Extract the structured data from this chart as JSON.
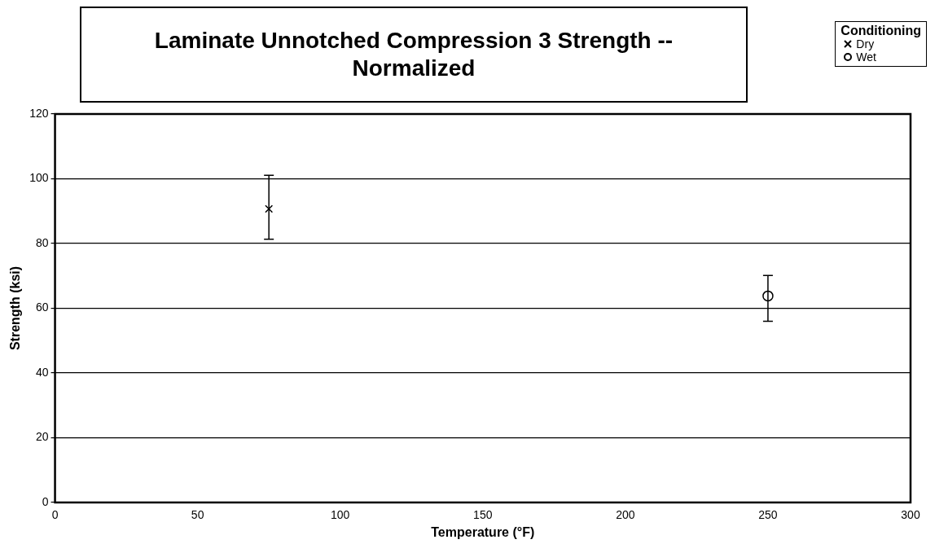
{
  "chart_data": {
    "type": "scatter",
    "title": "Laminate Unnotched Compression 3 Strength  -- Normalized",
    "xlabel": "Temperature (°F)",
    "ylabel": "Strength (ksi)",
    "legend_title": "Conditioning",
    "legend": "top right",
    "series": [
      {
        "name": "Dry",
        "color": "#000000",
        "marker": "cross",
        "x": [
          75
        ],
        "values": [
          90.7
        ],
        "errors": [
          [
            81.3,
            101.1
          ]
        ]
      },
      {
        "name": "Wet",
        "color": "#000000",
        "marker": "circle",
        "x": [
          250
        ],
        "values": [
          63.8
        ],
        "errors": [
          [
            56.0,
            70.1
          ]
        ]
      }
    ],
    "xlim": [
      0,
      300
    ],
    "xticks": [
      0,
      50,
      100,
      150,
      200,
      250,
      300
    ],
    "ylim": [
      0,
      120
    ],
    "yticks": [
      0,
      20,
      40,
      60,
      80,
      100,
      120
    ],
    "grid": "y"
  }
}
